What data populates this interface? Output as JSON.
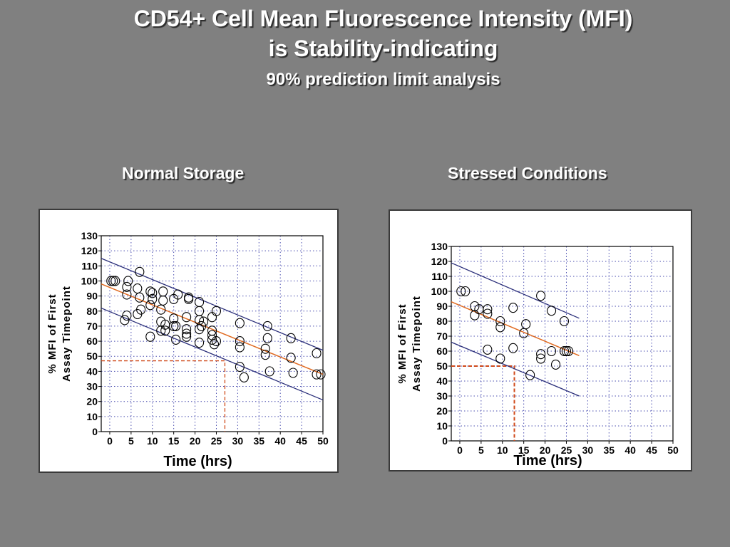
{
  "slide": {
    "title_line1": "CD54+ Cell Mean Fluorescence Intensity (MFI)",
    "title_line2": "is Stability-indicating",
    "subtitle": "90% prediction limit analysis"
  },
  "colors": {
    "background": "#808080",
    "fit_line": "#e06a20",
    "limit_lines": "#2b2f7a",
    "grid": "#4b4fb0",
    "dashed_guide": "#d04a1a",
    "points": "#000000"
  },
  "chart_data": [
    {
      "type": "scatter",
      "title": "Normal Storage",
      "xlabel": "Time (hrs)",
      "ylabel_line1": "% MFI of First",
      "ylabel_line2": "Assay Timepoint",
      "xlim": [
        -2,
        50
      ],
      "ylim": [
        0,
        130
      ],
      "xticks": [
        0,
        5,
        10,
        15,
        20,
        25,
        30,
        35,
        40,
        45,
        50
      ],
      "yticks": [
        0,
        10,
        20,
        30,
        40,
        50,
        60,
        70,
        80,
        90,
        100,
        110,
        120,
        130
      ],
      "grid": true,
      "fit": {
        "x": [
          -2,
          50
        ],
        "y": [
          98,
          38
        ]
      },
      "upper_limit": {
        "x": [
          -2,
          50
        ],
        "y": [
          115,
          54
        ]
      },
      "lower_limit": {
        "x": [
          -2,
          50
        ],
        "y": [
          82,
          21
        ]
      },
      "guide": {
        "x": 27,
        "y": 47
      },
      "points": [
        [
          0.3,
          100
        ],
        [
          0.8,
          100
        ],
        [
          1.3,
          100
        ],
        [
          3.5,
          74
        ],
        [
          4,
          77
        ],
        [
          4,
          91
        ],
        [
          4,
          96
        ],
        [
          4.3,
          100
        ],
        [
          6.5,
          78
        ],
        [
          6.5,
          95
        ],
        [
          7,
          89
        ],
        [
          7,
          106
        ],
        [
          7.3,
          81
        ],
        [
          9.5,
          63
        ],
        [
          9.5,
          84
        ],
        [
          9.5,
          93
        ],
        [
          10,
          92
        ],
        [
          10,
          88
        ],
        [
          12,
          67
        ],
        [
          12,
          73
        ],
        [
          12,
          81
        ],
        [
          12.5,
          87
        ],
        [
          12.5,
          93
        ],
        [
          13,
          67
        ],
        [
          13,
          71
        ],
        [
          15,
          70
        ],
        [
          15,
          75
        ],
        [
          15,
          88
        ],
        [
          15.5,
          61
        ],
        [
          15.5,
          70
        ],
        [
          16,
          91
        ],
        [
          18,
          63
        ],
        [
          18,
          65
        ],
        [
          18,
          68
        ],
        [
          18,
          76
        ],
        [
          18.5,
          89
        ],
        [
          18.5,
          88
        ],
        [
          21,
          59
        ],
        [
          21,
          68
        ],
        [
          21,
          74
        ],
        [
          21,
          80
        ],
        [
          21,
          86
        ],
        [
          21.5,
          70
        ],
        [
          22,
          73
        ],
        [
          24,
          64
        ],
        [
          24,
          67
        ],
        [
          24,
          76
        ],
        [
          24,
          61
        ],
        [
          24.5,
          58
        ],
        [
          25,
          80
        ],
        [
          25,
          60
        ],
        [
          30.5,
          72
        ],
        [
          30.5,
          60
        ],
        [
          30.5,
          56
        ],
        [
          30.5,
          43
        ],
        [
          31.5,
          36
        ],
        [
          36.5,
          51
        ],
        [
          36.5,
          55
        ],
        [
          37,
          62
        ],
        [
          37,
          70
        ],
        [
          37.5,
          40
        ],
        [
          42.5,
          62
        ],
        [
          42.5,
          49
        ],
        [
          43,
          39
        ],
        [
          48.5,
          52
        ],
        [
          48.5,
          38
        ],
        [
          49.5,
          38
        ]
      ]
    },
    {
      "type": "scatter",
      "title": "Stressed Conditions",
      "xlabel": "Time (hrs)",
      "ylabel_line1": "% MFI of First",
      "ylabel_line2": "Assay Timepoint",
      "xlim": [
        -2,
        50
      ],
      "ylim": [
        0,
        130
      ],
      "xticks": [
        0,
        5,
        10,
        15,
        20,
        25,
        30,
        35,
        40,
        45,
        50
      ],
      "yticks": [
        0,
        10,
        20,
        30,
        40,
        50,
        60,
        70,
        80,
        90,
        100,
        110,
        120,
        130
      ],
      "grid": true,
      "fit": {
        "x": [
          -2,
          28
        ],
        "y": [
          93,
          57
        ]
      },
      "upper_limit": {
        "x": [
          -2,
          28
        ],
        "y": [
          119,
          82
        ]
      },
      "lower_limit": {
        "x": [
          -2,
          28
        ],
        "y": [
          66,
          30
        ]
      },
      "guide": {
        "x": 12.8,
        "y": 50
      },
      "points": [
        [
          0.3,
          100
        ],
        [
          1.3,
          100
        ],
        [
          3.5,
          90
        ],
        [
          3.5,
          84
        ],
        [
          4.5,
          88
        ],
        [
          6.5,
          61
        ],
        [
          6.5,
          85
        ],
        [
          6.5,
          88
        ],
        [
          9.5,
          76
        ],
        [
          9.5,
          55
        ],
        [
          9.5,
          80
        ],
        [
          12.5,
          89
        ],
        [
          12.5,
          62
        ],
        [
          15,
          72
        ],
        [
          15.5,
          78
        ],
        [
          16.5,
          44
        ],
        [
          19,
          97
        ],
        [
          19,
          58
        ],
        [
          19,
          55
        ],
        [
          21.5,
          87
        ],
        [
          21.5,
          60
        ],
        [
          22.5,
          51
        ],
        [
          24.5,
          60
        ],
        [
          24.5,
          80
        ],
        [
          25,
          60
        ],
        [
          25.5,
          60
        ]
      ]
    }
  ]
}
